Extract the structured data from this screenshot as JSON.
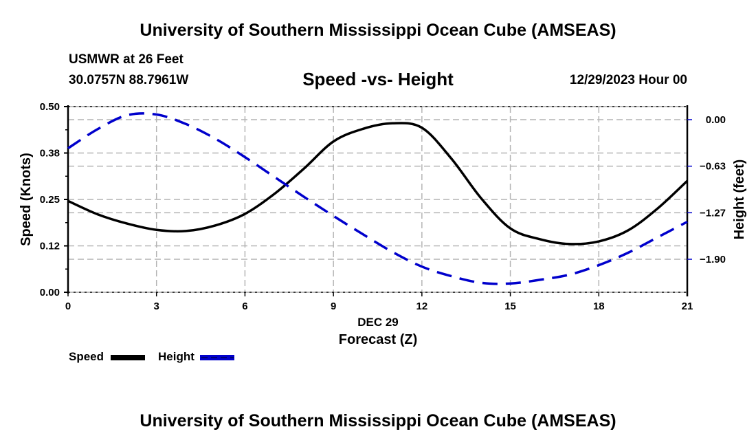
{
  "header": {
    "title": "University of Southern Mississippi Ocean Cube (AMSEAS)",
    "station": "USMWR at 26 Feet",
    "coordinates": "30.0757N  88.7961W",
    "subtitle": "Speed -vs- Height",
    "date": "12/29/2023 Hour 00"
  },
  "footer": {
    "title": "University of Southern Mississippi Ocean Cube (AMSEAS)"
  },
  "legend": {
    "items": [
      {
        "label": "Speed",
        "color": "#000000",
        "style": "solid"
      },
      {
        "label": "Height",
        "color": "#0000cc",
        "style": "dashed"
      }
    ]
  },
  "chart_data": {
    "type": "line",
    "title": "Speed -vs- Height",
    "xlabel": "Forecast (Z)",
    "xsublabel": "DEC 29",
    "ylabel": "Speed (Knots)",
    "y2label": "Height (feet)",
    "xlim": [
      0,
      21
    ],
    "ylim": [
      0,
      0.5
    ],
    "y2lim": [
      -2.36,
      0.18
    ],
    "x_ticks": [
      0,
      3,
      6,
      9,
      12,
      15,
      18,
      21
    ],
    "x_tick_labels": [
      "0",
      "3",
      "6",
      "9",
      "12",
      "15",
      "18",
      "21"
    ],
    "y_ticks": [
      0.0,
      0.125,
      0.25,
      0.375,
      0.5
    ],
    "y_tick_labels": [
      "0.00",
      "0.12",
      "0.25",
      "0.38",
      "0.50"
    ],
    "y2_ticks": [
      0.0,
      -0.633,
      -1.267,
      -1.9
    ],
    "y2_tick_labels": [
      "0.00",
      "−0.63",
      "−1.27",
      "−1.90"
    ],
    "grid": true,
    "legend_position": "bottom-left",
    "x": [
      0,
      1,
      2,
      3,
      4,
      5,
      6,
      7,
      8,
      9,
      10,
      11,
      12,
      13,
      14,
      15,
      16,
      17,
      18,
      19,
      20,
      21
    ],
    "series": [
      {
        "name": "Speed",
        "axis": "left",
        "color": "#000000",
        "values": [
          0.246,
          0.21,
          0.185,
          0.168,
          0.165,
          0.18,
          0.211,
          0.265,
          0.333,
          0.406,
          0.44,
          0.455,
          0.443,
          0.36,
          0.254,
          0.172,
          0.143,
          0.13,
          0.137,
          0.167,
          0.226,
          0.3
        ]
      },
      {
        "name": "Height",
        "axis": "right",
        "color": "#0000cc",
        "values": [
          -0.39,
          -0.13,
          0.06,
          0.07,
          -0.06,
          -0.26,
          -0.51,
          -0.78,
          -1.05,
          -1.31,
          -1.56,
          -1.8,
          -2.0,
          -2.13,
          -2.22,
          -2.23,
          -2.18,
          -2.11,
          -1.98,
          -1.81,
          -1.6,
          -1.39
        ]
      }
    ]
  }
}
